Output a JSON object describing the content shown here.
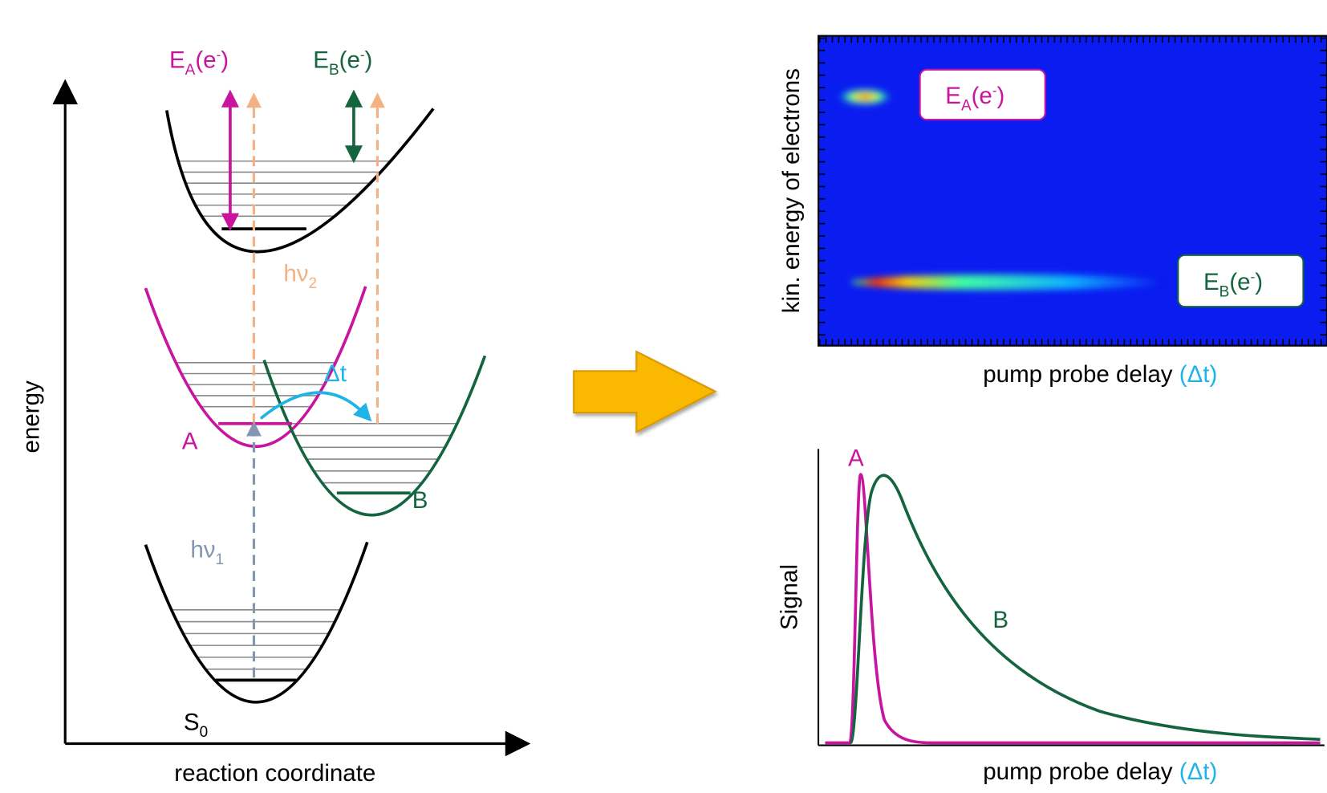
{
  "diagram": {
    "axis_y_label": "energy",
    "axis_x_label": "reaction coordinate",
    "photoelectron_labels": [
      {
        "main": "E",
        "sub": "A",
        "open": "(e",
        "sup": "-",
        "close": ")"
      },
      {
        "main": "E",
        "sub": "B",
        "open": "(e",
        "sup": "-",
        "close": ")"
      }
    ],
    "photon_labels": [
      {
        "main": "hν",
        "sub": "2"
      },
      {
        "main": "hν",
        "sub": "1"
      }
    ],
    "delay_label": "Δt",
    "states": [
      "A",
      "B"
    ],
    "ground_state": {
      "main": "S",
      "sub": "0"
    }
  },
  "map": {
    "y_label": "kin. energy of electrons",
    "peak_labels": [
      {
        "main": "E",
        "sub": "A",
        "open": "(e",
        "sup": "-",
        "close": ")"
      },
      {
        "main": "E",
        "sub": "B",
        "open": "(e",
        "sup": "-",
        "close": ")"
      }
    ],
    "x_label": "pump probe delay",
    "x_label_delta": "(Δt)"
  },
  "signal": {
    "y_label": "Signal",
    "curve_labels": [
      "A",
      "B"
    ],
    "x_label": "pump probe delay",
    "x_label_delta": "(Δt)"
  }
}
